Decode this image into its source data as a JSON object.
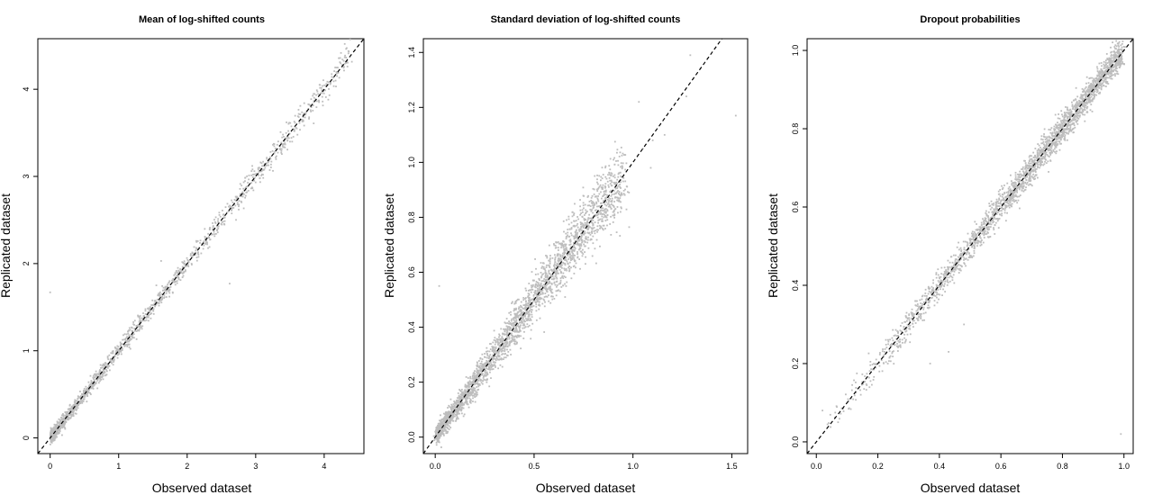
{
  "chart_data": [
    {
      "type": "scatter",
      "title": "Mean of log-shifted counts",
      "xlabel": "Observed dataset",
      "ylabel": "Replicated dataset",
      "xlim": [
        -0.18,
        4.58
      ],
      "ylim": [
        -0.18,
        4.58
      ],
      "xticks": [
        0,
        1,
        2,
        3,
        4
      ],
      "yticks": [
        0,
        1,
        2,
        3,
        4
      ],
      "reference_line": {
        "slope": 1,
        "intercept": 0,
        "style": "dashed"
      },
      "point_color": "#bdbdbd",
      "cloud": {
        "min": 0.02,
        "max": 4.4,
        "n": 1600,
        "skew": 2.2,
        "noise": 0.035,
        "noise_growth": 0.01
      },
      "points": [
        {
          "x": 0.0,
          "y": 1.67
        },
        {
          "x": 2.62,
          "y": 1.77
        },
        {
          "x": 3.45,
          "y": 3.62
        },
        {
          "x": 3.6,
          "y": 3.55
        },
        {
          "x": 4.3,
          "y": 4.52
        },
        {
          "x": 1.55,
          "y": 1.75
        },
        {
          "x": 2.95,
          "y": 3.12
        },
        {
          "x": 1.62,
          "y": 2.03
        }
      ]
    },
    {
      "type": "scatter",
      "title": "Standard deviation of log-shifted counts",
      "xlabel": "Observed dataset",
      "ylabel": "Replicated dataset",
      "xlim": [
        -0.06,
        1.58
      ],
      "ylim": [
        -0.06,
        1.45
      ],
      "xticks": [
        0.0,
        0.5,
        1.0,
        1.5
      ],
      "yticks": [
        0.0,
        0.2,
        0.4,
        0.6,
        0.8,
        1.0,
        1.2,
        1.4
      ],
      "reference_line": {
        "slope": 1,
        "intercept": 0,
        "style": "dashed"
      },
      "point_color": "#bdbdbd",
      "cloud": {
        "min": 0.005,
        "max": 0.95,
        "n": 2600,
        "skew": 1.3,
        "noise": 0.015,
        "noise_growth": 0.05
      },
      "points": [
        {
          "x": 0.02,
          "y": 0.55
        },
        {
          "x": 1.52,
          "y": 1.17
        },
        {
          "x": 1.03,
          "y": 1.22
        },
        {
          "x": 1.09,
          "y": 0.98
        },
        {
          "x": 1.29,
          "y": 1.39
        },
        {
          "x": 1.27,
          "y": 1.24
        },
        {
          "x": 1.16,
          "y": 1.1
        },
        {
          "x": 1.05,
          "y": 1.05
        },
        {
          "x": 1.1,
          "y": 1.08
        },
        {
          "x": 0.98,
          "y": 0.89
        }
      ]
    },
    {
      "type": "scatter",
      "title": "Dropout probabilities",
      "xlabel": "Observed dataset",
      "ylabel": "Replicated dataset",
      "xlim": [
        -0.03,
        1.03
      ],
      "ylim": [
        -0.03,
        1.03
      ],
      "xticks": [
        0.0,
        0.2,
        0.4,
        0.6,
        0.8,
        1.0
      ],
      "yticks": [
        0.0,
        0.2,
        0.4,
        0.6,
        0.8,
        1.0
      ],
      "reference_line": {
        "slope": 1,
        "intercept": 0,
        "style": "dashed"
      },
      "point_color": "#bdbdbd",
      "cloud": {
        "min": 0.0,
        "max": 0.995,
        "n": 2400,
        "skew": 0.45,
        "noise": 0.018,
        "noise_growth": 0.0
      },
      "points": [
        {
          "x": 0.99,
          "y": 0.02
        },
        {
          "x": 0.43,
          "y": 0.23
        },
        {
          "x": 0.48,
          "y": 0.3
        },
        {
          "x": 0.37,
          "y": 0.2
        },
        {
          "x": 0.02,
          "y": 0.08
        }
      ]
    }
  ]
}
